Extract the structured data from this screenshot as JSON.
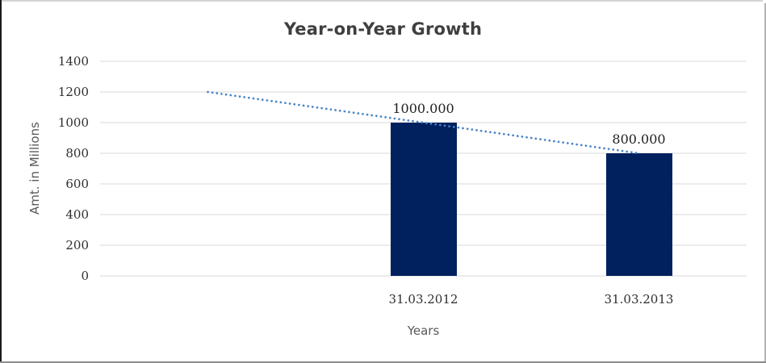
{
  "chart_data": {
    "type": "bar",
    "title": "Year-on-Year Growth",
    "xlabel": "Years",
    "ylabel": "Amt. in Millions",
    "categories": [
      "31.03.2012",
      "31.03.2013"
    ],
    "values": [
      1000,
      800
    ],
    "bar_value_labels": [
      "1000.000",
      "800.000"
    ],
    "ylim": [
      0,
      1400
    ],
    "yticks": [
      0,
      200,
      400,
      600,
      800,
      1000,
      1200,
      1400
    ],
    "grid": "horizontal",
    "legend": "none",
    "slots": 3,
    "bar_slots": [
      1,
      2
    ],
    "trendline": {
      "style": "dotted",
      "values": [
        1200,
        1000,
        800
      ],
      "slots": [
        0,
        1,
        2
      ],
      "color": "#4a84c6"
    },
    "colors": {
      "bar": "#00215e",
      "gridline": "#d9d9d9",
      "title_text": "#3f3f3f",
      "axis_title_text": "#595959",
      "tick_text": "#2e2e2e"
    }
  }
}
